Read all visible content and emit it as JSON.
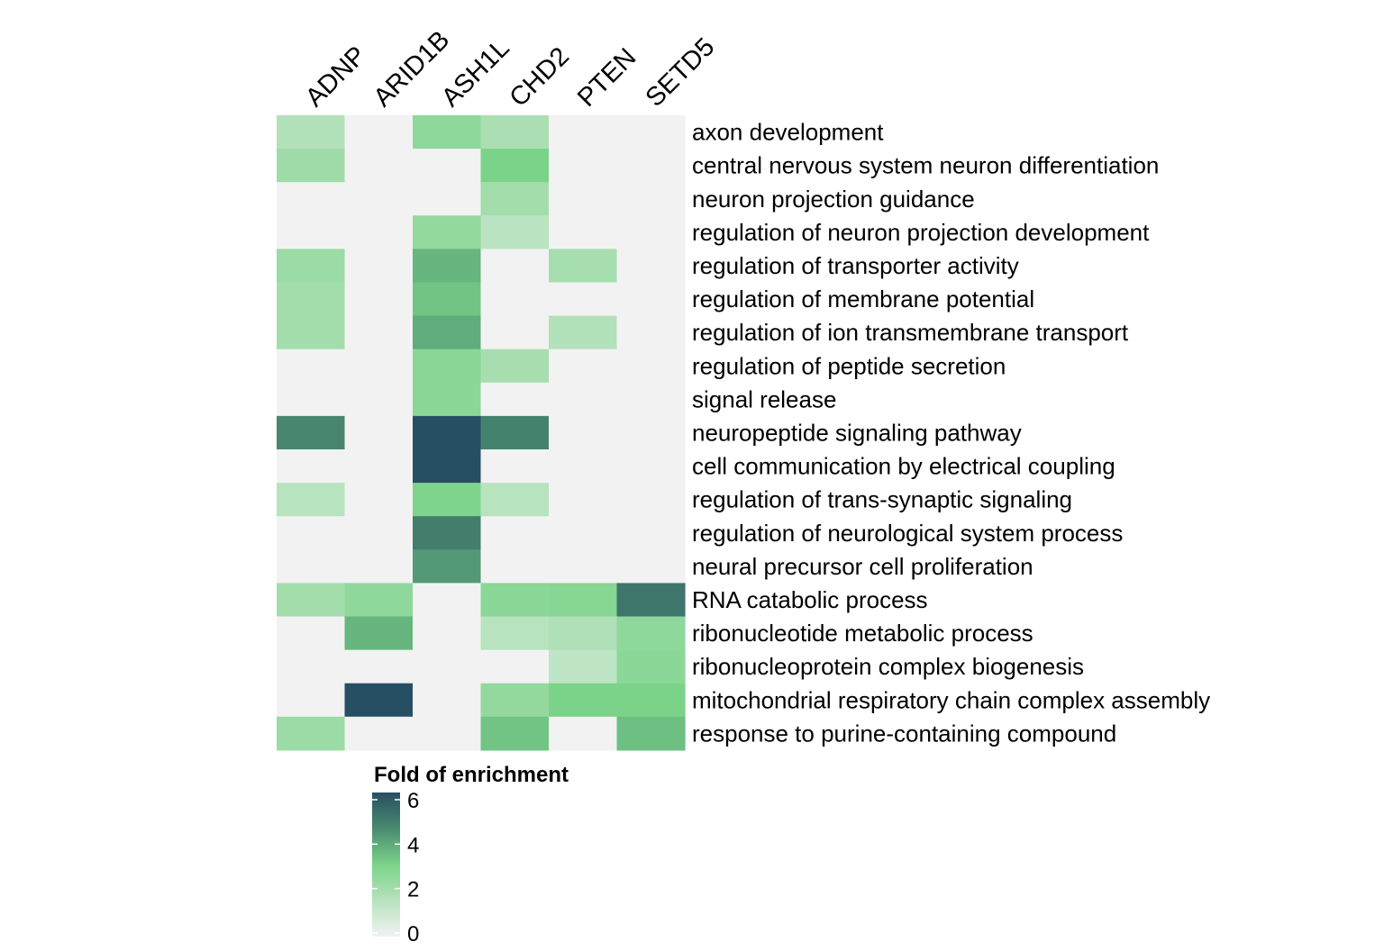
{
  "chart_data": {
    "type": "heatmap",
    "title": "",
    "xlabel": "",
    "ylabel": "",
    "columns": [
      "ADNP",
      "ARID1B",
      "ASH1L",
      "CHD2",
      "PTEN",
      "SETD5"
    ],
    "rows": [
      "axon development",
      "central nervous system neuron differentiation",
      "neuron projection guidance",
      "regulation of neuron projection development",
      "regulation of transporter activity",
      "regulation of membrane potential",
      "regulation of ion transmembrane transport",
      "regulation of peptide secretion",
      "signal release",
      "neuropeptide signaling pathway",
      "cell communication by electrical coupling",
      "regulation of trans-synaptic signaling",
      "regulation of neurological system process",
      "neural precursor cell proliferation",
      "RNA catabolic process",
      "ribonucleotide metabolic process",
      "ribonucleoprotein complex biogenesis",
      "mitochondrial respiratory chain complex assembly",
      "response to purine-containing compound"
    ],
    "values": [
      [
        1.6,
        0,
        2.5,
        1.8,
        0,
        0
      ],
      [
        2.1,
        0,
        0,
        3.0,
        0,
        0
      ],
      [
        0,
        0,
        0,
        2.0,
        0,
        0
      ],
      [
        0,
        0,
        2.4,
        1.4,
        0,
        0
      ],
      [
        2.2,
        0,
        3.6,
        0,
        1.9,
        0
      ],
      [
        2.0,
        0,
        3.3,
        0,
        0,
        0
      ],
      [
        2.0,
        0,
        3.8,
        0,
        1.6,
        0
      ],
      [
        0,
        0,
        2.6,
        1.9,
        0,
        0
      ],
      [
        0,
        0,
        2.6,
        0,
        0,
        0
      ],
      [
        4.6,
        0,
        6.0,
        4.7,
        0,
        0
      ],
      [
        0,
        0,
        6.0,
        0,
        0,
        0
      ],
      [
        1.5,
        0,
        2.9,
        1.5,
        0,
        0
      ],
      [
        0,
        0,
        4.8,
        0,
        0,
        0
      ],
      [
        0,
        0,
        4.2,
        0,
        0,
        0
      ],
      [
        2.0,
        2.5,
        0,
        2.6,
        2.7,
        5.0
      ],
      [
        0,
        3.6,
        0,
        1.5,
        1.7,
        2.5
      ],
      [
        0,
        0,
        0,
        0,
        1.3,
        2.6
      ],
      [
        0,
        6.0,
        0,
        2.4,
        3.0,
        3.0
      ],
      [
        2.2,
        0,
        0,
        3.3,
        0,
        3.4
      ]
    ],
    "colorbar": {
      "title": "Fold of enrichment",
      "ticks": [
        0,
        2,
        4,
        6
      ],
      "range": [
        0,
        6
      ],
      "stops": [
        {
          "value": 0,
          "color": "#f2f2f2"
        },
        {
          "value": 3,
          "color": "#7bd389"
        },
        {
          "value": 4.5,
          "color": "#4a8a70"
        },
        {
          "value": 6,
          "color": "#274f63"
        }
      ]
    },
    "column_labels_position": "top",
    "row_labels_position": "right",
    "legend_position": "bottom",
    "grid": false
  }
}
